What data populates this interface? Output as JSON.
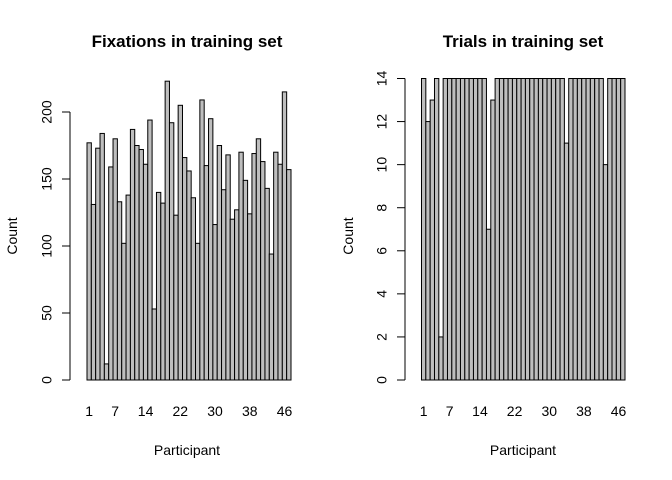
{
  "chart_data": [
    {
      "type": "bar",
      "title": "Fixations in training set",
      "xlabel": "Participant",
      "ylabel": "Count",
      "ylim": [
        0,
        225
      ],
      "yticks": [
        0,
        50,
        100,
        150,
        200
      ],
      "xtick_labels": [
        "1",
        "7",
        "14",
        "22",
        "30",
        "38",
        "46"
      ],
      "xtick_positions": [
        1,
        7,
        14,
        22,
        30,
        38,
        46
      ],
      "categories": [
        1,
        2,
        3,
        4,
        5,
        6,
        7,
        8,
        9,
        10,
        11,
        12,
        13,
        14,
        15,
        16,
        17,
        18,
        19,
        20,
        21,
        22,
        23,
        24,
        25,
        26,
        27,
        28,
        29,
        30,
        31,
        32,
        33,
        34,
        35,
        36,
        37,
        38,
        39,
        40,
        41,
        42,
        43,
        44,
        45,
        46,
        47
      ],
      "values": [
        177,
        131,
        173,
        184,
        12,
        159,
        180,
        133,
        102,
        138,
        187,
        175,
        172,
        161,
        194,
        53,
        140,
        132,
        223,
        192,
        123,
        205,
        166,
        156,
        136,
        102,
        209,
        160,
        195,
        116,
        175,
        142,
        168,
        120,
        127,
        170,
        149,
        124,
        169,
        180,
        163,
        143,
        94,
        170,
        161,
        215,
        157
      ],
      "color": "#bebebe"
    },
    {
      "type": "bar",
      "title": "Trials in training set",
      "xlabel": "Participant",
      "ylabel": "Count",
      "ylim": [
        0,
        14
      ],
      "yticks": [
        0,
        2,
        4,
        6,
        8,
        10,
        12,
        14
      ],
      "xtick_labels": [
        "1",
        "7",
        "14",
        "22",
        "30",
        "38",
        "46"
      ],
      "xtick_positions": [
        1,
        7,
        14,
        22,
        30,
        38,
        46
      ],
      "categories": [
        1,
        2,
        3,
        4,
        5,
        6,
        7,
        8,
        9,
        10,
        11,
        12,
        13,
        14,
        15,
        16,
        17,
        18,
        19,
        20,
        21,
        22,
        23,
        24,
        25,
        26,
        27,
        28,
        29,
        30,
        31,
        32,
        33,
        34,
        35,
        36,
        37,
        38,
        39,
        40,
        41,
        42,
        43,
        44,
        45,
        46,
        47
      ],
      "values": [
        14,
        12,
        13,
        14,
        2,
        14,
        14,
        14,
        14,
        14,
        14,
        14,
        14,
        14,
        14,
        7,
        13,
        14,
        14,
        14,
        14,
        14,
        14,
        14,
        14,
        14,
        14,
        14,
        14,
        14,
        14,
        14,
        14,
        11,
        14,
        14,
        14,
        14,
        14,
        14,
        14,
        14,
        10,
        14,
        14,
        14,
        14
      ],
      "color": "#bebebe"
    }
  ]
}
